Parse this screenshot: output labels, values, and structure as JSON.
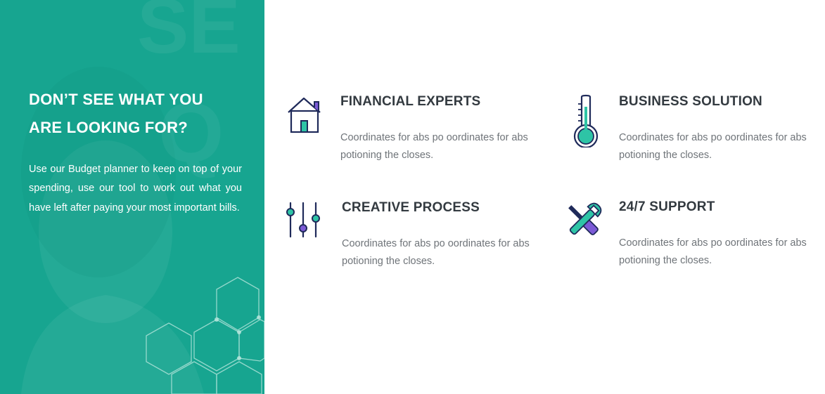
{
  "promo": {
    "title": "DON’T SEE WHAT YOU ARE LOOKING FOR?",
    "description": "Use our Budget planner to keep on top of your spending, use our tool to work out what you have left after paying your most important bills."
  },
  "colors": {
    "panel": "#17a590",
    "accent_teal": "#2ec4a6",
    "accent_purple": "#7b5ad6",
    "icon_stroke": "#1f2a5a",
    "heading": "#333a40",
    "body_text": "#6f7479"
  },
  "features": [
    {
      "icon": "house-icon",
      "title": "FINANCIAL EXPERTS",
      "description": "Coordinates for abs po oordinates for abs potioning the closes."
    },
    {
      "icon": "thermometer-icon",
      "title": "BUSINESS SOLUTION",
      "description": "Coordinates for abs po oordinates for abs potioning the closes."
    },
    {
      "icon": "sliders-icon",
      "title": "CREATIVE PROCESS",
      "description": "Coordinates for abs po oordinates for abs potioning the closes."
    },
    {
      "icon": "tools-icon",
      "title": "24/7 SUPPORT",
      "description": "Coordinates for abs po oordinates for abs potioning the closes."
    }
  ]
}
